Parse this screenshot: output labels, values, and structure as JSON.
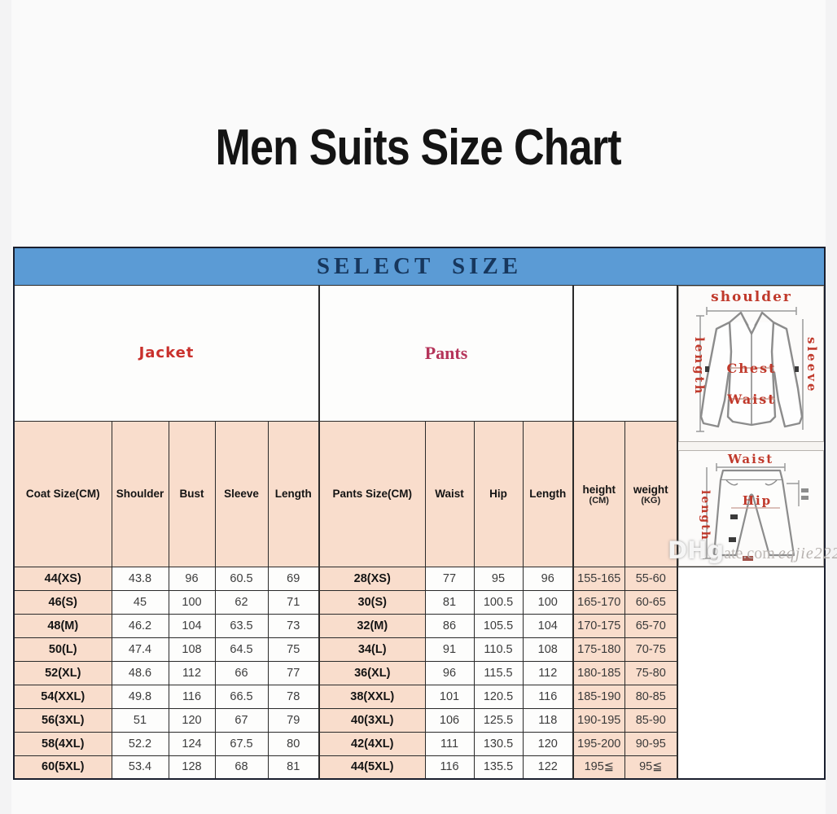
{
  "page_title": "Men Suits Size Chart",
  "chart_data": {
    "type": "table",
    "title": "Men Suits Size Chart",
    "banner": "SELECT SIZE",
    "groups": [
      {
        "label": "Jacket",
        "span": 5
      },
      {
        "label": "Pants",
        "span": 4
      }
    ],
    "columns": [
      "Coat Size(CM)",
      "Shoulder",
      "Bust",
      "Sleeve",
      "Length",
      "Pants Size(CM)",
      "Waist",
      "Hip",
      "Length"
    ],
    "extra_columns": [
      {
        "top": "height",
        "bottom": "(CM)"
      },
      {
        "top": "weight",
        "bottom": "(KG)"
      }
    ],
    "rows": [
      [
        "44(XS)",
        "43.8",
        "96",
        "60.5",
        "69",
        "28(XS)",
        "77",
        "95",
        "96",
        "155-165",
        "55-60"
      ],
      [
        "46(S)",
        "45",
        "100",
        "62",
        "71",
        "30(S)",
        "81",
        "100.5",
        "100",
        "165-170",
        "60-65"
      ],
      [
        "48(M)",
        "46.2",
        "104",
        "63.5",
        "73",
        "32(M)",
        "86",
        "105.5",
        "104",
        "170-175",
        "65-70"
      ],
      [
        "50(L)",
        "47.4",
        "108",
        "64.5",
        "75",
        "34(L)",
        "91",
        "110.5",
        "108",
        "175-180",
        "70-75"
      ],
      [
        "52(XL)",
        "48.6",
        "112",
        "66",
        "77",
        "36(XL)",
        "96",
        "115.5",
        "112",
        "180-185",
        "75-80"
      ],
      [
        "54(XXL)",
        "49.8",
        "116",
        "66.5",
        "78",
        "38(XXL)",
        "101",
        "120.5",
        "116",
        "185-190",
        "80-85"
      ],
      [
        "56(3XL)",
        "51",
        "120",
        "67",
        "79",
        "40(3XL)",
        "106",
        "125.5",
        "118",
        "190-195",
        "85-90"
      ],
      [
        "58(4XL)",
        "52.2",
        "124",
        "67.5",
        "80",
        "42(4XL)",
        "111",
        "130.5",
        "120",
        "195-200",
        "90-95"
      ],
      [
        "60(5XL)",
        "53.4",
        "128",
        "68",
        "81",
        "44(5XL)",
        "116",
        "135.5",
        "122",
        "195≦",
        "95≦"
      ]
    ]
  },
  "jacket_diagram": {
    "top": "shoulder",
    "left": "length",
    "right": "sleeve",
    "chest": "Chest",
    "waist": "Waist"
  },
  "pants_diagram": {
    "top": "Waist",
    "left": "length",
    "hip": "Hip"
  },
  "watermark": {
    "part1": "DHg",
    "part2": "ate.com",
    "part3": "eqjie222"
  },
  "colors": {
    "banner_bg": "#5b9bd5",
    "banner_text": "#17375d",
    "cell_peach": "#f9ddcc",
    "jacket_label": "#c9302c",
    "pants_label": "#b5345a",
    "diagram_label": "#c0392b"
  }
}
